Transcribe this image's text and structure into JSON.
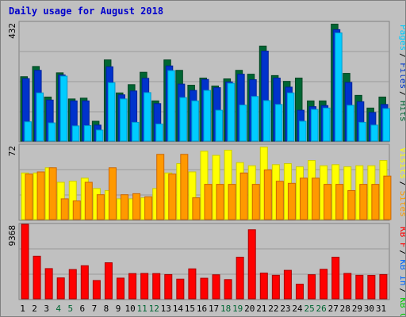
{
  "title": "Daily usage for August 2018",
  "chart_data": [
    {
      "type": "bar",
      "name": "pages-files-hits",
      "max_label": "432",
      "ylim": [
        0,
        432
      ],
      "legend": [
        {
          "name": "Pages",
          "color": "#00ccff"
        },
        {
          "name": "Files",
          "color": "#0033cc"
        },
        {
          "name": "Hits",
          "color": "#006633"
        }
      ],
      "categories": [
        "1",
        "2",
        "3",
        "4",
        "5",
        "6",
        "7",
        "8",
        "9",
        "10",
        "11",
        "12",
        "13",
        "14",
        "15",
        "16",
        "17",
        "18",
        "19",
        "20",
        "21",
        "22",
        "23",
        "24",
        "25",
        "26",
        "27",
        "28",
        "29",
        "30",
        "31"
      ],
      "weekend_days": [
        "4",
        "5",
        "11",
        "12",
        "18",
        "19",
        "25",
        "26"
      ],
      "series": [
        {
          "name": "Hits",
          "values": [
            234,
            271,
            160,
            248,
            153,
            156,
            72,
            295,
            175,
            205,
            250,
            146,
            295,
            257,
            203,
            229,
            200,
            226,
            257,
            243,
            345,
            238,
            217,
            229,
            146,
            146,
            425,
            246,
            166,
            120,
            160
          ]
        },
        {
          "name": "Files",
          "values": [
            227,
            257,
            149,
            240,
            146,
            146,
            58,
            270,
            168,
            182,
            228,
            136,
            273,
            207,
            184,
            224,
            194,
            215,
            243,
            223,
            327,
            229,
            196,
            112,
            125,
            129,
            405,
            213,
            143,
            104,
            133
          ]
        },
        {
          "name": "Pages",
          "values": [
            70,
            175,
            66,
            236,
            55,
            56,
            40,
            212,
            153,
            68,
            176,
            62,
            256,
            158,
            146,
            184,
            112,
            210,
            131,
            162,
            147,
            133,
            175,
            72,
            115,
            120,
            393,
            130,
            68,
            58,
            118
          ]
        }
      ]
    },
    {
      "type": "bar",
      "name": "visits-sites",
      "max_label": "72",
      "ylim": [
        0,
        72
      ],
      "legend": [
        {
          "name": "Visits",
          "color": "#ffff00"
        },
        {
          "name": "Sites",
          "color": "#ff9900"
        }
      ],
      "categories": [
        "1",
        "2",
        "3",
        "4",
        "5",
        "6",
        "7",
        "8",
        "9",
        "10",
        "11",
        "12",
        "13",
        "14",
        "15",
        "16",
        "17",
        "18",
        "19",
        "20",
        "21",
        "22",
        "23",
        "24",
        "25",
        "26",
        "27",
        "28",
        "29",
        "30",
        "31"
      ],
      "series": [
        {
          "name": "Visits",
          "values": [
            45,
            45,
            50,
            36,
            37,
            40,
            30,
            28,
            20,
            20,
            21,
            30,
            45,
            54,
            46,
            66,
            62,
            67,
            55,
            52,
            70,
            53,
            54,
            51,
            57,
            52,
            53,
            51,
            52,
            52,
            57
          ]
        },
        {
          "name": "Sites",
          "values": [
            44,
            46,
            50,
            20,
            18,
            36,
            24,
            50,
            24,
            25,
            22,
            63,
            44,
            63,
            21,
            34,
            34,
            34,
            45,
            34,
            48,
            37,
            35,
            40,
            40,
            34,
            34,
            28,
            34,
            34,
            42
          ]
        }
      ]
    },
    {
      "type": "bar",
      "name": "kb",
      "max_label": "9368",
      "ylim": [
        0,
        9368
      ],
      "legend": [
        {
          "name": "KB F",
          "color": "#ff0000"
        },
        {
          "name": "KB In",
          "color": "#0066ff"
        },
        {
          "name": "KB Out",
          "color": "#00cc00"
        }
      ],
      "categories": [
        "1",
        "2",
        "3",
        "4",
        "5",
        "6",
        "7",
        "8",
        "9",
        "10",
        "11",
        "12",
        "13",
        "14",
        "15",
        "16",
        "17",
        "18",
        "19",
        "20",
        "21",
        "22",
        "23",
        "24",
        "25",
        "26",
        "27",
        "28",
        "29",
        "30",
        "31"
      ],
      "series": [
        {
          "name": "KB F",
          "values": [
            9368,
            5350,
            3795,
            2627,
            3679,
            4157,
            2296,
            4530,
            2599,
            3172,
            3187,
            3172,
            3046,
            2469,
            3764,
            2583,
            3016,
            2412,
            5231,
            8689,
            3232,
            2957,
            3577,
            1837,
            3027,
            3708,
            5231,
            3188,
            2954,
            2944,
            3046
          ]
        }
      ]
    }
  ]
}
